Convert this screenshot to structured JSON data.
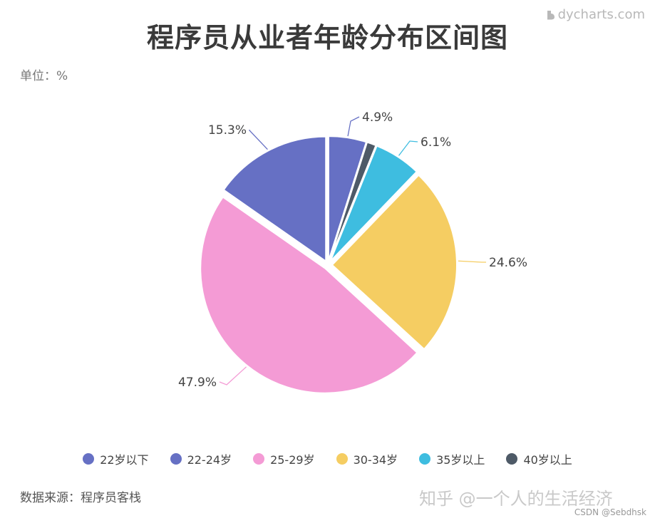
{
  "title": "程序员从业者年龄分布区间图",
  "unit": "单位：%",
  "logo": {
    "text": "dycharts.com",
    "icon": "dycharts-logo-icon"
  },
  "source": "数据来源：程序员客栈",
  "watermark": "知乎 @一个人的生活经济",
  "csdn": "CSDN @Sebdhsk",
  "chart_data": {
    "type": "pie",
    "title": "程序员从业者年龄分布区间图",
    "unit": "%",
    "legend_position": "bottom",
    "slices": [
      {
        "label": "22岁以下",
        "value": 4.9,
        "value_label": "4.9%",
        "color": "#6670c4"
      },
      {
        "label": "40岁以上",
        "value": 1.2,
        "value_label": "",
        "color": "#4e5a67"
      },
      {
        "label": "35岁以上",
        "value": 6.1,
        "value_label": "6.1%",
        "color": "#3ebde0"
      },
      {
        "label": "30-34岁",
        "value": 24.6,
        "value_label": "24.6%",
        "color": "#f5cd62"
      },
      {
        "label": "25-29岁",
        "value": 47.9,
        "value_label": "47.9%",
        "color": "#f49bd5"
      },
      {
        "label": "22-24岁",
        "value": 15.3,
        "value_label": "15.3%",
        "color": "#6670c4"
      }
    ],
    "legend": [
      {
        "label": "22岁以下",
        "color": "#6670c4"
      },
      {
        "label": "22-24岁",
        "color": "#6670c4"
      },
      {
        "label": "25-29岁",
        "color": "#f49bd5"
      },
      {
        "label": "30-34岁",
        "color": "#f5cd62"
      },
      {
        "label": "35岁以上",
        "color": "#3ebde0"
      },
      {
        "label": "40岁以上",
        "color": "#4e5a67"
      }
    ]
  }
}
